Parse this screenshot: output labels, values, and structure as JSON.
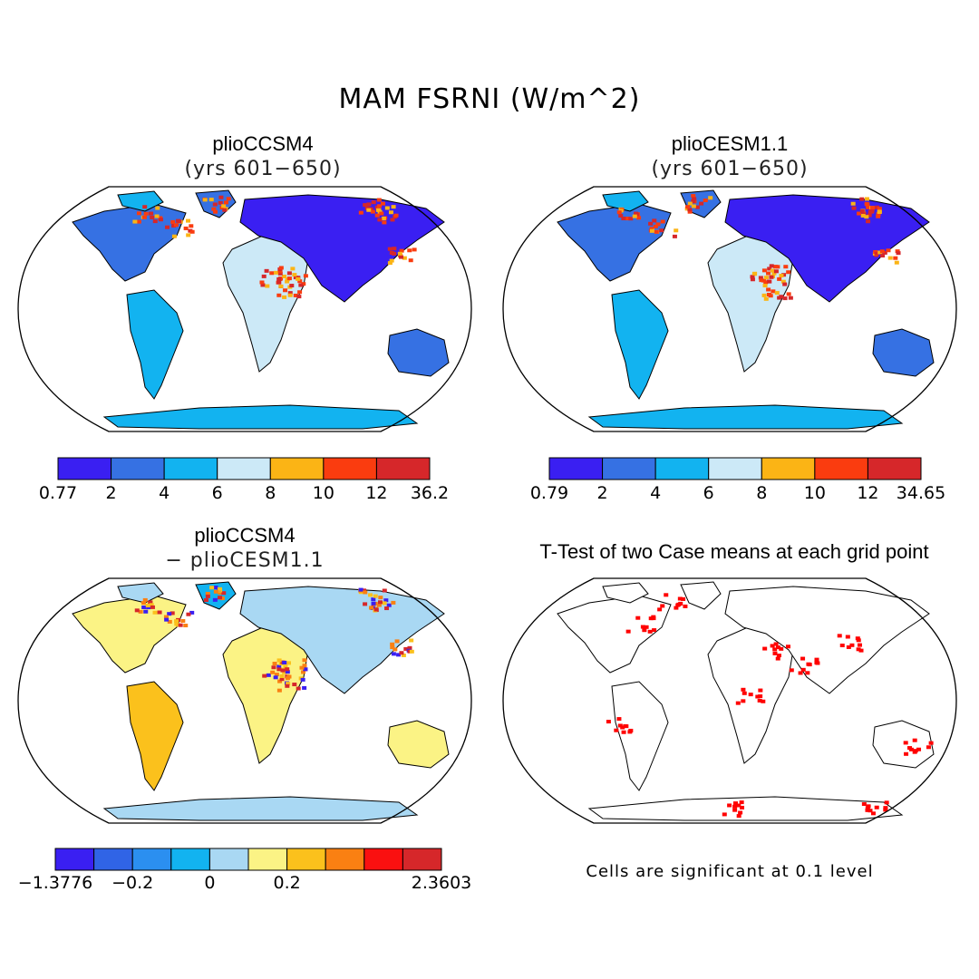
{
  "figure": {
    "title": "MAM FSRNI (W/m^2)"
  },
  "panels": [
    {
      "id": "case1",
      "title": "plioCCSM4",
      "subtitle": "(yrs 601−650)",
      "colorbar": {
        "colors": [
          "#3a1ff2",
          "#3671e3",
          "#12b3f0",
          "#cce9f7",
          "#fbb415",
          "#fa3c0f",
          "#d6272a"
        ],
        "labels": [
          "0.77",
          "2",
          "4",
          "6",
          "8",
          "10",
          "12",
          "36.2"
        ]
      }
    },
    {
      "id": "case2",
      "title": "plioCESM1.1",
      "subtitle": "(yrs 601−650)",
      "colorbar": {
        "colors": [
          "#3a1ff2",
          "#3671e3",
          "#12b3f0",
          "#cce9f7",
          "#fbb415",
          "#fa3c0f",
          "#d6272a"
        ],
        "labels": [
          "0.79",
          "2",
          "4",
          "6",
          "8",
          "10",
          "12",
          "34.65"
        ]
      }
    },
    {
      "id": "diff",
      "title": "plioCCSM4",
      "subtitle": "− plioCESM1.1",
      "colorbar": {
        "colors": [
          "#3a1ff2",
          "#3064e6",
          "#2b8ff0",
          "#12b3f0",
          "#a9d8f3",
          "#fbf385",
          "#fbc11c",
          "#fa8012",
          "#fa1010",
          "#d6272a"
        ],
        "labels": [
          "−1.3776",
          "",
          "−0.2",
          "",
          "0",
          "",
          "0.2",
          "",
          "",
          "",
          "2.3603"
        ]
      }
    },
    {
      "id": "ttest",
      "title": "T-Test of two Case means at each grid point",
      "note": "Cells are significant at 0.1 level",
      "significance_color": "#ff0000"
    }
  ]
}
